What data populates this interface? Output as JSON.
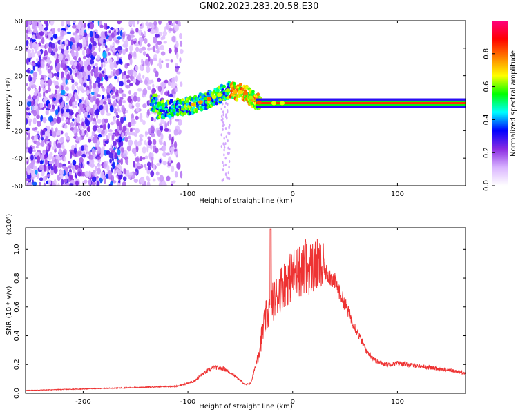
{
  "title": "GN02.2023.283.20.58.E30",
  "chart_data": [
    {
      "type": "heatmap",
      "xlabel": "Height of straight line (km)",
      "ylabel": "Frequency (Hz)",
      "xlim": [
        -255,
        165
      ],
      "ylim": [
        -60,
        60
      ],
      "x_ticks": [
        -200,
        -100,
        0,
        100
      ],
      "y_ticks": [
        -60,
        -40,
        -20,
        0,
        20,
        40,
        60
      ],
      "colorbar": {
        "label": "Normalized spectral amplitude",
        "range": [
          0.0,
          1.0
        ],
        "ticks": [
          0.0,
          0.2,
          0.4,
          0.6,
          0.8
        ],
        "colors": [
          "#ffffff",
          "#d9b3ff",
          "#8a2be2",
          "#0000ff",
          "#00ffff",
          "#00ff00",
          "#ffff00",
          "#ff8000",
          "#ff0000",
          "#ff0080"
        ]
      },
      "ridge": {
        "x": [
          -130,
          -115,
          -100,
          -90,
          -80,
          -70,
          -60,
          -55,
          -50,
          -45,
          -40,
          -35,
          -30,
          0,
          50,
          100,
          165
        ],
        "y": [
          -5,
          -4,
          -2,
          0,
          3,
          6,
          10,
          8,
          8,
          7,
          4,
          1,
          0,
          0,
          0,
          0,
          0
        ]
      }
    },
    {
      "type": "line",
      "xlabel": "Height of straight line (km)",
      "ylabel": "SNR (10 * v/v)",
      "y_multiplier": "(x10⁴)",
      "xlim": [
        -255,
        165
      ],
      "ylim": [
        0.0,
        1.15
      ],
      "x_ticks": [
        -200,
        -100,
        0,
        100
      ],
      "y_ticks": [
        "0.0",
        "0.2",
        "0.4",
        "0.6",
        "0.8",
        "1.0"
      ],
      "color": "#ee3333",
      "x": [
        -255,
        -200,
        -150,
        -110,
        -95,
        -85,
        -75,
        -65,
        -55,
        -45,
        -40,
        -35,
        -30,
        -26,
        -22,
        -20,
        -18,
        -15,
        -10,
        -5,
        0,
        5,
        10,
        15,
        20,
        25,
        30,
        40,
        50,
        60,
        70,
        80,
        90,
        100,
        110,
        120,
        130,
        140,
        150,
        165
      ],
      "y": [
        0.02,
        0.03,
        0.04,
        0.05,
        0.08,
        0.14,
        0.18,
        0.17,
        0.12,
        0.06,
        0.07,
        0.2,
        0.38,
        0.52,
        0.58,
        0.62,
        0.65,
        0.68,
        0.75,
        0.78,
        0.82,
        0.85,
        0.86,
        0.87,
        0.88,
        0.88,
        0.85,
        0.78,
        0.62,
        0.45,
        0.3,
        0.22,
        0.2,
        0.21,
        0.2,
        0.19,
        0.18,
        0.17,
        0.16,
        0.14
      ]
    }
  ]
}
